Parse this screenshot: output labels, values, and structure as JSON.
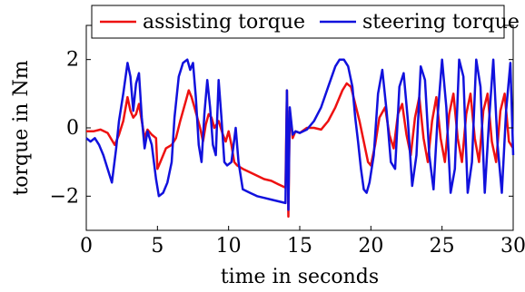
{
  "chart_data": {
    "type": "line",
    "xlabel": "time in seconds",
    "ylabel": "torque in Nm",
    "xlim": [
      0,
      30
    ],
    "ylim": [
      -3,
      3
    ],
    "xticks": [
      0,
      5,
      10,
      15,
      20,
      25,
      30
    ],
    "yticks": [
      -2,
      0,
      2
    ],
    "xtick_labels": [
      "0",
      "5",
      "10",
      "15",
      "20",
      "25",
      "30"
    ],
    "ytick_labels": [
      "−2",
      "0",
      "2"
    ],
    "grid": false,
    "legend_position": "top",
    "colors": {
      "assisting": "#ee1111",
      "steering": "#1111dd"
    },
    "series": [
      {
        "name": "assisting torque",
        "x": [
          0,
          0.5,
          1.0,
          1.5,
          2.0,
          2.3,
          2.6,
          2.9,
          3.1,
          3.3,
          3.5,
          3.7,
          3.9,
          4.1,
          4.3,
          4.6,
          4.9,
          5.0,
          5.2,
          5.6,
          6.0,
          6.3,
          6.6,
          7.0,
          7.2,
          7.4,
          7.6,
          7.8,
          8.0,
          8.2,
          8.4,
          8.6,
          8.8,
          9.0,
          9.3,
          9.6,
          9.8,
          10.0,
          10.2,
          10.4,
          10.6,
          11.0,
          11.5,
          12.0,
          12.5,
          13.0,
          13.5,
          14.0,
          14.1,
          14.2,
          14.3,
          14.5,
          14.7,
          15.0,
          15.5,
          16.0,
          16.5,
          17.0,
          17.5,
          18.0,
          18.3,
          18.6,
          18.9,
          19.2,
          19.5,
          19.8,
          20.0,
          20.3,
          20.6,
          21.0,
          21.3,
          21.6,
          21.9,
          22.2,
          22.5,
          22.8,
          23.1,
          23.4,
          23.7,
          24.0,
          24.3,
          24.6,
          24.9,
          25.2,
          25.5,
          25.8,
          26.1,
          26.4,
          26.7,
          27.0,
          27.3,
          27.6,
          27.9,
          28.2,
          28.5,
          28.8,
          29.1,
          29.4,
          29.7,
          30.0
        ],
        "values": [
          -0.1,
          -0.1,
          -0.05,
          -0.15,
          -0.5,
          -0.2,
          0.2,
          0.9,
          0.5,
          0.3,
          0.4,
          0.7,
          0.2,
          -0.3,
          -0.05,
          -0.2,
          -0.3,
          -1.2,
          -1.0,
          -0.6,
          -0.5,
          -0.3,
          0.2,
          0.8,
          1.1,
          0.9,
          0.6,
          0.3,
          0.0,
          -0.4,
          0.1,
          0.4,
          0.3,
          0.0,
          0.2,
          -0.2,
          -0.4,
          -0.1,
          -0.5,
          -1.0,
          -1.1,
          -1.2,
          -1.3,
          -1.4,
          -1.5,
          -1.55,
          -1.65,
          -1.75,
          1.1,
          -2.6,
          0.5,
          -0.3,
          -0.1,
          -0.15,
          0.0,
          0.0,
          -0.05,
          0.2,
          0.6,
          1.1,
          1.3,
          1.2,
          0.7,
          0.2,
          -0.4,
          -1.0,
          -1.1,
          -0.5,
          0.3,
          0.6,
          -0.2,
          -0.6,
          0.4,
          0.7,
          -0.2,
          -0.8,
          0.3,
          0.9,
          -0.3,
          -1.0,
          0.2,
          0.9,
          -0.3,
          -1.0,
          0.4,
          1.0,
          -0.3,
          -1.0,
          0.4,
          1.0,
          -0.3,
          -1.0,
          0.5,
          1.0,
          -0.4,
          -1.0,
          0.5,
          1.0,
          -0.4,
          -0.6
        ]
      },
      {
        "name": "steering torque",
        "x": [
          0,
          0.3,
          0.6,
          0.9,
          1.2,
          1.5,
          1.8,
          2.1,
          2.3,
          2.6,
          2.9,
          3.1,
          3.3,
          3.5,
          3.7,
          3.9,
          4.1,
          4.3,
          4.6,
          4.9,
          5.1,
          5.4,
          5.7,
          6.0,
          6.2,
          6.5,
          6.8,
          7.1,
          7.3,
          7.5,
          7.7,
          7.9,
          8.1,
          8.3,
          8.5,
          8.7,
          8.9,
          9.1,
          9.3,
          9.5,
          9.7,
          9.9,
          10.2,
          10.5,
          10.7,
          11.0,
          11.5,
          12.0,
          12.5,
          13.0,
          13.5,
          14.0,
          14.1,
          14.2,
          14.3,
          14.5,
          14.7,
          15.0,
          15.5,
          16.0,
          16.5,
          17.0,
          17.5,
          17.8,
          18.1,
          18.4,
          18.7,
          18.9,
          19.1,
          19.3,
          19.5,
          19.7,
          19.9,
          20.2,
          20.5,
          20.8,
          21.1,
          21.4,
          21.7,
          22.0,
          22.3,
          22.6,
          22.9,
          23.2,
          23.5,
          23.8,
          24.1,
          24.4,
          24.7,
          25.0,
          25.3,
          25.6,
          25.9,
          26.2,
          26.5,
          26.8,
          27.1,
          27.4,
          27.7,
          28.0,
          28.3,
          28.6,
          28.9,
          29.2,
          29.5,
          29.8,
          30.0
        ],
        "values": [
          -0.3,
          -0.4,
          -0.3,
          -0.5,
          -0.8,
          -1.2,
          -1.6,
          -0.6,
          0.2,
          1.0,
          1.9,
          1.5,
          0.5,
          1.3,
          1.6,
          0.3,
          -0.6,
          -0.1,
          -0.5,
          -1.5,
          -2.0,
          -1.9,
          -1.6,
          -1.0,
          0.3,
          1.5,
          1.9,
          2.0,
          1.7,
          1.9,
          0.9,
          -0.5,
          -1.0,
          0.4,
          1.4,
          0.6,
          -0.5,
          -0.8,
          1.4,
          0.3,
          -1.0,
          -1.1,
          -1.0,
          0.0,
          -1.0,
          -1.8,
          -1.9,
          -2.0,
          -2.05,
          -2.1,
          -2.15,
          -2.2,
          1.1,
          -2.4,
          0.6,
          -0.2,
          -0.1,
          -0.15,
          -0.05,
          0.2,
          0.6,
          1.2,
          1.8,
          2.0,
          2.0,
          1.8,
          1.2,
          0.3,
          -0.4,
          -1.2,
          -1.8,
          -1.9,
          -1.6,
          -0.8,
          1.0,
          1.7,
          0.5,
          -1.0,
          -1.2,
          1.2,
          1.6,
          0.2,
          -1.7,
          -0.8,
          1.8,
          1.4,
          -0.8,
          -1.8,
          0.4,
          2.0,
          0.6,
          -1.9,
          -1.2,
          2.0,
          1.5,
          -1.9,
          -1.0,
          2.0,
          1.2,
          -1.9,
          0.2,
          2.0,
          -0.5,
          -1.9,
          0.5,
          1.9,
          -0.8
        ]
      }
    ]
  }
}
